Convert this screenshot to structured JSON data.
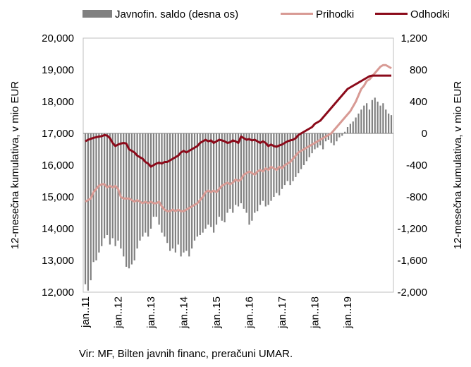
{
  "chart_data": {
    "type": "bar+line",
    "legend": {
      "position": "top",
      "entries": [
        {
          "label": "Javnofin. saldo (desna os)",
          "color": "#808080",
          "kind": "bar"
        },
        {
          "label": "Prihodki",
          "color": "#d89a94",
          "kind": "line"
        },
        {
          "label": "Odhodki",
          "color": "#8b0a1a",
          "kind": "line"
        }
      ]
    },
    "ylabel_left": "12-mesečna kumulativa, v mio EUR",
    "ylabel_right": "12-mesečna kumulativa, v mio EUR",
    "y_left": {
      "min": 12000,
      "max": 20000,
      "ticks": [
        "12,000",
        "13,000",
        "14,000",
        "15,000",
        "16,000",
        "17,000",
        "18,000",
        "19,000",
        "20,000"
      ]
    },
    "y_right": {
      "min": -2000,
      "max": 1200,
      "ticks": [
        "-2,000",
        "-1,600",
        "-1,200",
        "-800",
        "-400",
        "0",
        "400",
        "800",
        "1,200"
      ]
    },
    "x_labels": [
      "jan..11",
      "jan..12",
      "jan..13",
      "jan..14",
      "jan..15",
      "jan..16",
      "jan..17",
      "jan..18",
      "jan..19"
    ],
    "months_per_label": 12,
    "grid": false,
    "series": [
      {
        "name": "Javnofin. saldo (desna os)",
        "axis": "right",
        "kind": "bar",
        "values": [
          -1900,
          -1980,
          -1850,
          -1620,
          -1600,
          -1500,
          -1420,
          -1320,
          -1280,
          -1400,
          -1320,
          -1420,
          -1350,
          -1450,
          -1550,
          -1680,
          -1700,
          -1650,
          -1600,
          -1450,
          -1350,
          -1300,
          -1250,
          -1300,
          -1200,
          -1050,
          -1050,
          -1150,
          -1250,
          -1300,
          -1380,
          -1480,
          -1450,
          -1500,
          -1400,
          -1550,
          -1500,
          -1480,
          -1550,
          -1450,
          -1350,
          -1300,
          -1280,
          -1250,
          -1200,
          -1150,
          -1180,
          -1250,
          -1150,
          -1050,
          -1100,
          -1120,
          -1000,
          -950,
          -1000,
          -900,
          -920,
          -880,
          -950,
          -1000,
          -1150,
          -1100,
          -1000,
          -980,
          -900,
          -850,
          -920,
          -900,
          -850,
          -800,
          -750,
          -780,
          -700,
          -650,
          -600,
          -650,
          -600,
          -550,
          -500,
          -450,
          -400,
          -350,
          -300,
          -250,
          -200,
          -180,
          -150,
          -200,
          -100,
          -80,
          -120,
          -150,
          -100,
          -50,
          -30,
          20,
          80,
          120,
          150,
          200,
          250,
          300,
          350,
          380,
          300,
          420,
          450,
          400,
          350,
          380,
          300,
          250,
          230
        ]
      },
      {
        "name": "Prihodki",
        "axis": "left",
        "kind": "line",
        "values": [
          14850,
          14900,
          14950,
          15150,
          15250,
          15350,
          15400,
          15400,
          15300,
          15350,
          15300,
          15350,
          15250,
          15000,
          14950,
          14950,
          14950,
          14900,
          14850,
          14900,
          14850,
          14800,
          14850,
          14800,
          14850,
          14800,
          14800,
          14850,
          14700,
          14600,
          14550,
          14550,
          14600,
          14550,
          14600,
          14550,
          14550,
          14600,
          14650,
          14700,
          14750,
          14800,
          14900,
          15000,
          15150,
          15200,
          15150,
          15200,
          15150,
          15250,
          15350,
          15400,
          15450,
          15400,
          15450,
          15550,
          15500,
          15550,
          15700,
          15750,
          15800,
          15750,
          15700,
          15800,
          15850,
          15800,
          15900,
          15850,
          15950,
          15900,
          15850,
          15950,
          15900,
          16000,
          16050,
          16100,
          16200,
          16300,
          16400,
          16450,
          16500,
          16550,
          16600,
          16650,
          16700,
          16750,
          16800,
          16850,
          16900,
          16950,
          17000,
          17100,
          17200,
          17300,
          17400,
          17500,
          17600,
          17700,
          17850,
          18000,
          18200,
          18400,
          18500,
          18650,
          18700,
          18800,
          18900,
          19000,
          19100,
          19150,
          19150,
          19100,
          19050
        ]
      },
      {
        "name": "Odhodki",
        "axis": "left",
        "kind": "line",
        "values": [
          16750,
          16800,
          16830,
          16860,
          16880,
          16900,
          16910,
          16950,
          16930,
          16850,
          16700,
          16600,
          16650,
          16680,
          16700,
          16680,
          16500,
          16450,
          16400,
          16300,
          16250,
          16200,
          16100,
          16050,
          15950,
          16000,
          16050,
          16080,
          16050,
          16100,
          16100,
          16150,
          16200,
          16250,
          16300,
          16400,
          16450,
          16400,
          16450,
          16500,
          16550,
          16600,
          16700,
          16750,
          16800,
          16750,
          16780,
          16700,
          16750,
          16800,
          16780,
          16750,
          16700,
          16720,
          16780,
          16750,
          16700,
          16900,
          16850,
          16800,
          16820,
          16780,
          16800,
          16750,
          16700,
          16750,
          16700,
          16600,
          16650,
          16600,
          16580,
          16620,
          16650,
          16700,
          16750,
          16780,
          16800,
          16850,
          16950,
          17000,
          17050,
          17100,
          17150,
          17200,
          17300,
          17350,
          17400,
          17500,
          17600,
          17700,
          17800,
          17900,
          18000,
          18100,
          18200,
          18300,
          18400,
          18450,
          18500,
          18550,
          18600,
          18650,
          18700,
          18750,
          18800,
          18820,
          18820,
          18820,
          18820,
          18820,
          18820,
          18820,
          18820
        ]
      }
    ],
    "source": "Vir: MF, Bilten javnih financ, preračuni UMAR."
  }
}
